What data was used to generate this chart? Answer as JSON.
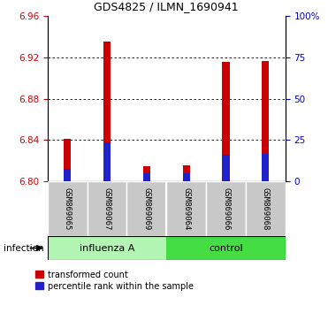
{
  "title": "GDS4825 / ILMN_1690941",
  "samples": [
    "GSM869065",
    "GSM869067",
    "GSM869069",
    "GSM869064",
    "GSM869066",
    "GSM869068"
  ],
  "ybase": 6.8,
  "ylim": [
    6.8,
    6.96
  ],
  "yticks": [
    6.8,
    6.84,
    6.88,
    6.92,
    6.96
  ],
  "right_yticks": [
    0,
    25,
    50,
    75,
    100
  ],
  "red_values": [
    6.841,
    6.935,
    6.815,
    6.816,
    6.915,
    6.916
  ],
  "blue_values": [
    6.812,
    6.838,
    6.808,
    6.808,
    6.826,
    6.827
  ],
  "bar_width": 0.18,
  "red_color": "#cc0000",
  "blue_color": "#2222cc",
  "left_tick_color": "#cc0000",
  "right_tick_color": "#0000cc",
  "legend_red": "transformed count",
  "legend_blue": "percentile rank within the sample",
  "infection_label": "infection",
  "sample_bg": "#c8c8c8",
  "influenza_color": "#b3f5b3",
  "control_color": "#44dd44",
  "dotted_yticks": [
    6.84,
    6.88,
    6.92
  ]
}
